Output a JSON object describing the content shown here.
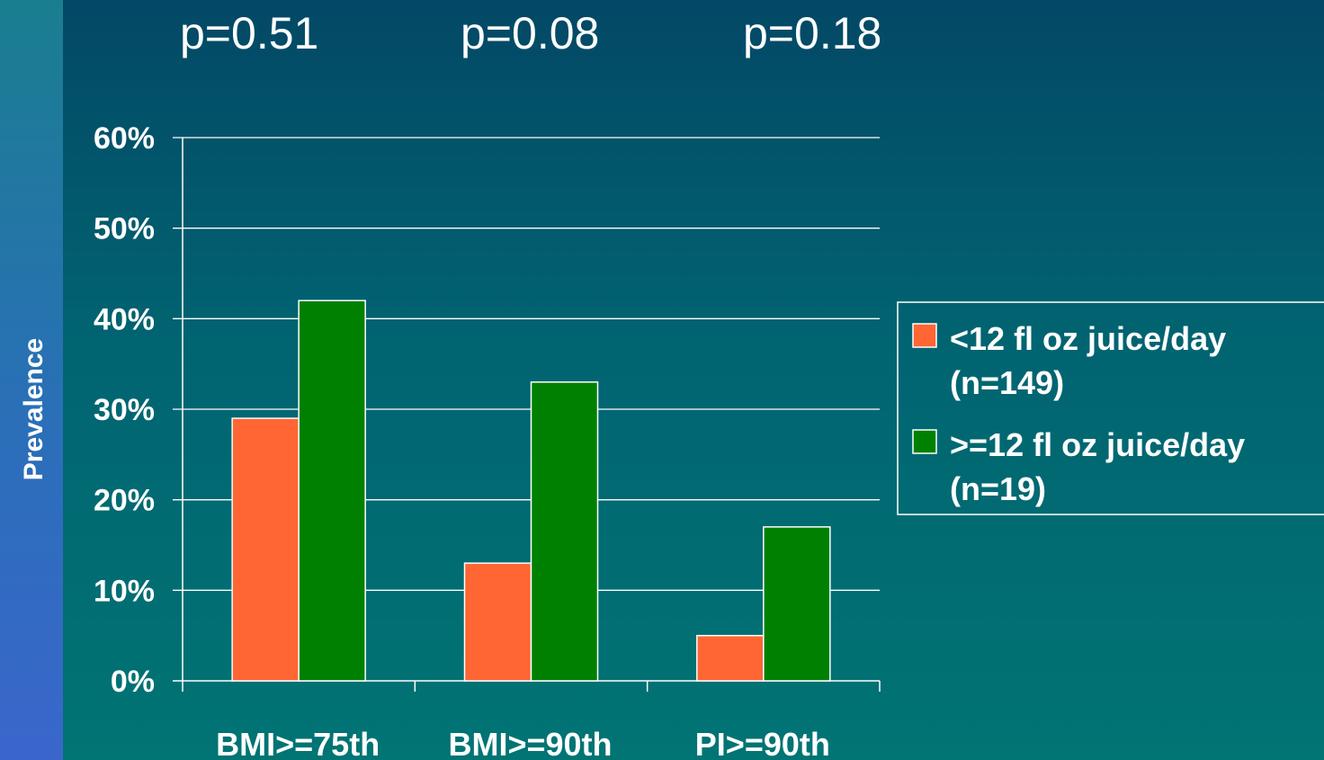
{
  "annotations": [
    "p=0.51",
    "p=0.08",
    "p=0.18"
  ],
  "chart_data": {
    "type": "bar",
    "title": "",
    "xlabel": "",
    "ylabel": "Prevalence",
    "categories": [
      "BMI>=75th",
      "BMI>=90th",
      "PI>=90th"
    ],
    "ylim": [
      0,
      60
    ],
    "yticks": [
      "0%",
      "10%",
      "20%",
      "30%",
      "40%",
      "50%",
      "60%"
    ],
    "grid": true,
    "legend_position": "right",
    "series": [
      {
        "name": "<12 fl oz juice/day",
        "name_line2": "(n=149)",
        "color": "#ff6633",
        "values": [
          29,
          13,
          5
        ]
      },
      {
        "name": ">=12 fl oz juice/day",
        "name_line2": "(n=19)",
        "color": "#008000",
        "values": [
          42,
          33,
          17
        ]
      }
    ]
  }
}
